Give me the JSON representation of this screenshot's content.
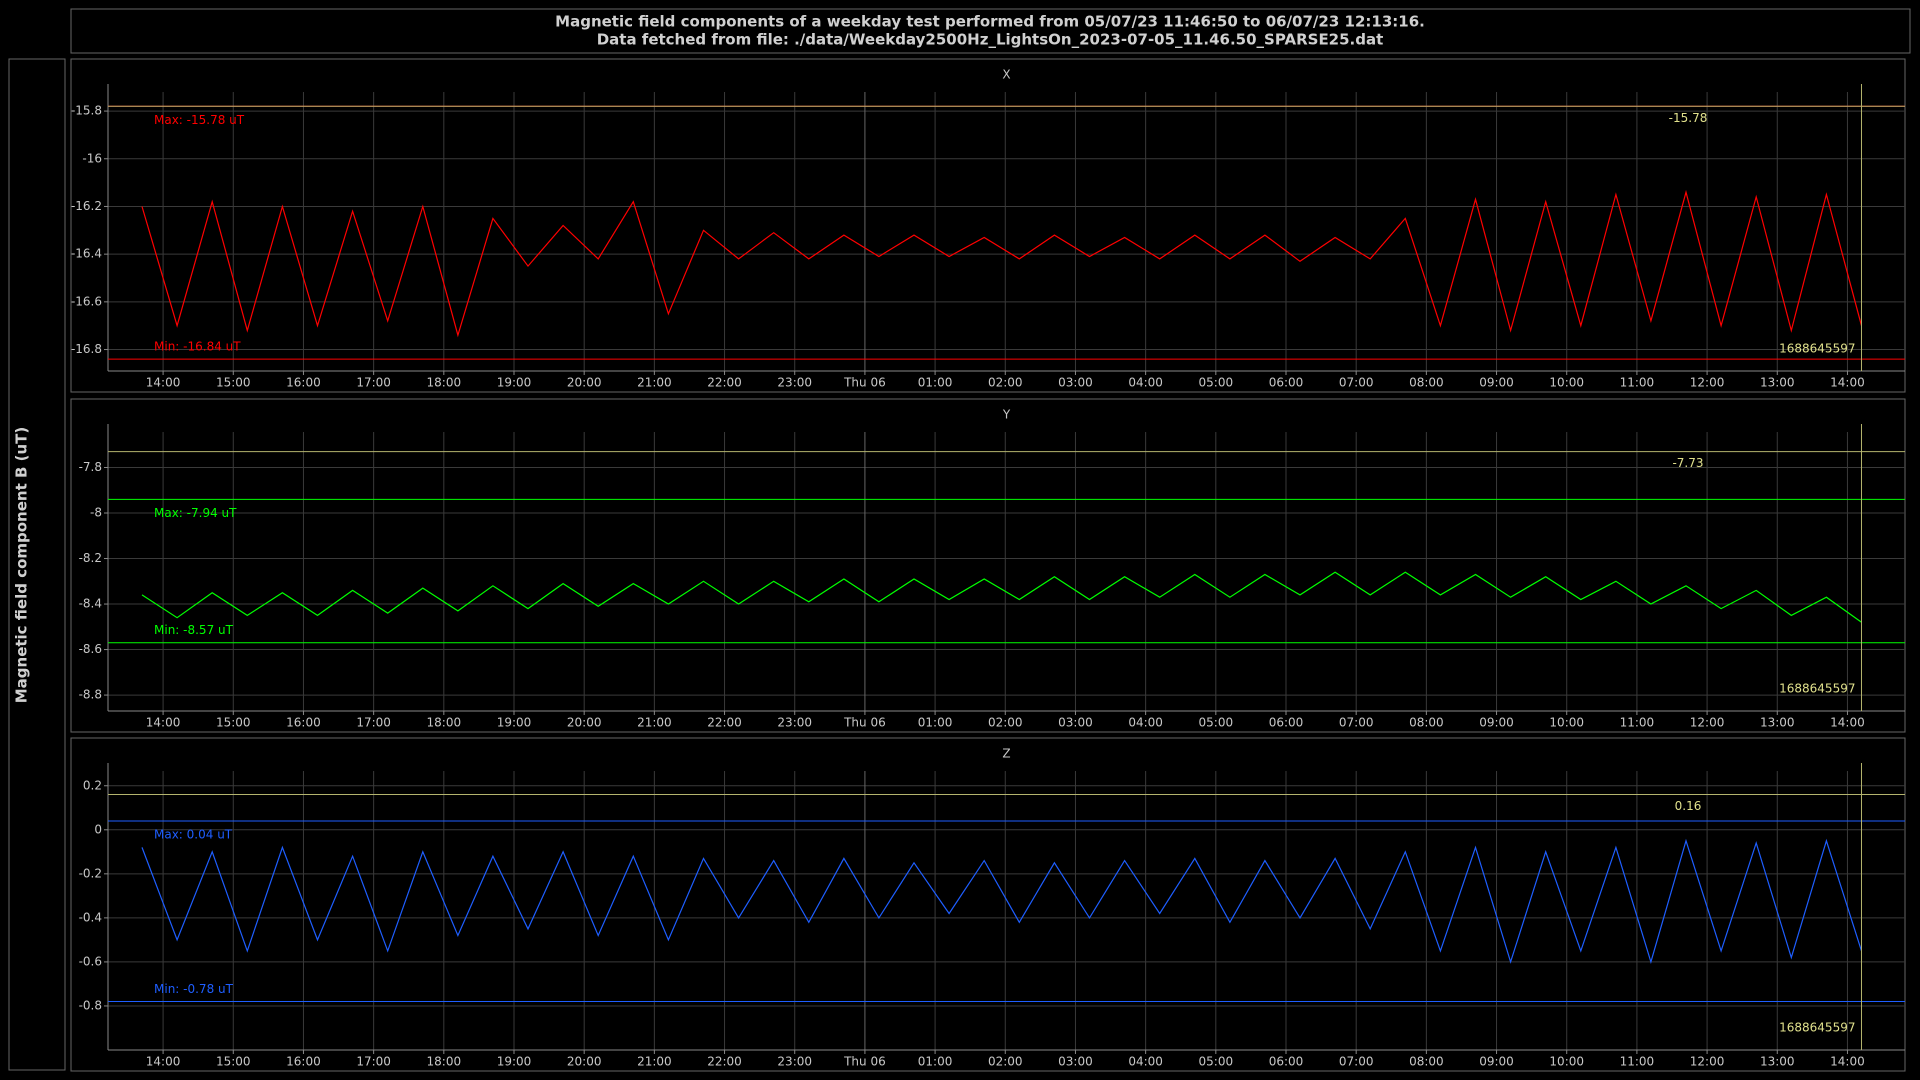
{
  "header": {
    "title_lines": [
      "Magnetic field components of a weekday test performed from 05/07/23 11:46:50 to 06/07/23 12:13:16.",
      "Data fetched from file: ./data/Weekday2500Hz_LightsOn_2023-07-05_11.46.50_SPARSE25.dat"
    ]
  },
  "y_axis_label": "Magnetic field component B (uT)",
  "chart_data": [
    {
      "type": "line",
      "title": "X",
      "color": "#ff0000",
      "grid": true,
      "x": [
        13.7,
        14.2,
        14.7,
        15.2,
        15.7,
        16.2,
        16.7,
        17.2,
        17.7,
        18.2,
        18.7,
        19.2,
        19.7,
        20.2,
        20.7,
        21.2,
        21.7,
        22.2,
        22.7,
        23.2,
        23.7,
        24.2,
        24.7,
        25.2,
        25.7,
        26.2,
        26.7,
        27.2,
        27.7,
        28.2,
        28.7,
        29.2,
        29.7,
        30.2,
        30.7,
        31.2,
        31.7,
        32.2,
        32.7,
        33.2,
        33.7,
        34.2,
        34.7,
        35.2,
        35.7,
        36.2,
        36.7,
        37.2,
        37.7,
        38.2
      ],
      "values": [
        -16.2,
        -16.7,
        -16.18,
        -16.72,
        -16.2,
        -16.7,
        -16.22,
        -16.68,
        -16.2,
        -16.74,
        -16.25,
        -16.45,
        -16.28,
        -16.42,
        -16.18,
        -16.65,
        -16.3,
        -16.42,
        -16.31,
        -16.42,
        -16.32,
        -16.41,
        -16.32,
        -16.41,
        -16.33,
        -16.42,
        -16.32,
        -16.41,
        -16.33,
        -16.42,
        -16.32,
        -16.42,
        -16.32,
        -16.43,
        -16.33,
        -16.42,
        -16.25,
        -16.7,
        -16.17,
        -16.72,
        -16.18,
        -16.7,
        -16.15,
        -16.68,
        -16.14,
        -16.7,
        -16.16,
        -16.72,
        -16.15,
        -16.7
      ],
      "xlim": [
        13.215,
        38.82
      ],
      "ylim": [
        -16.89,
        -15.72
      ],
      "yticks": [
        -15.8,
        -16,
        -16.2,
        -16.4,
        -16.6,
        -16.8
      ],
      "xticks": [
        {
          "value": 14,
          "label": "14:00"
        },
        {
          "value": 15,
          "label": "15:00"
        },
        {
          "value": 16,
          "label": "16:00"
        },
        {
          "value": 17,
          "label": "17:00"
        },
        {
          "value": 18,
          "label": "18:00"
        },
        {
          "value": 19,
          "label": "19:00"
        },
        {
          "value": 20,
          "label": "20:00"
        },
        {
          "value": 21,
          "label": "21:00"
        },
        {
          "value": 22,
          "label": "22:00"
        },
        {
          "value": 23,
          "label": "23:00"
        },
        {
          "value": 24,
          "label": "Thu 06"
        },
        {
          "value": 25,
          "label": "01:00"
        },
        {
          "value": 26,
          "label": "02:00"
        },
        {
          "value": 27,
          "label": "03:00"
        },
        {
          "value": 28,
          "label": "04:00"
        },
        {
          "value": 29,
          "label": "05:00"
        },
        {
          "value": 30,
          "label": "06:00"
        },
        {
          "value": 31,
          "label": "07:00"
        },
        {
          "value": 32,
          "label": "08:00"
        },
        {
          "value": 33,
          "label": "09:00"
        },
        {
          "value": 34,
          "label": "10:00"
        },
        {
          "value": 35,
          "label": "11:00"
        },
        {
          "value": 36,
          "label": "12:00"
        },
        {
          "value": 37,
          "label": "13:00"
        },
        {
          "value": 38,
          "label": "14:00"
        }
      ],
      "max": {
        "value": -15.78,
        "label": "Max: -15.78 uT"
      },
      "min": {
        "value": -16.84,
        "label": "Min: -16.84 uT"
      },
      "cursor_y": -15.78,
      "cursor_x": {
        "value": 38.2,
        "label": "1688645597"
      }
    },
    {
      "type": "line",
      "title": "Y",
      "color": "#00ff00",
      "grid": true,
      "x": [
        13.7,
        14.2,
        14.7,
        15.2,
        15.7,
        16.2,
        16.7,
        17.2,
        17.7,
        18.2,
        18.7,
        19.2,
        19.7,
        20.2,
        20.7,
        21.2,
        21.7,
        22.2,
        22.7,
        23.2,
        23.7,
        24.2,
        24.7,
        25.2,
        25.7,
        26.2,
        26.7,
        27.2,
        27.7,
        28.2,
        28.7,
        29.2,
        29.7,
        30.2,
        30.7,
        31.2,
        31.7,
        32.2,
        32.7,
        33.2,
        33.7,
        34.2,
        34.7,
        35.2,
        35.7,
        36.2,
        36.7,
        37.2,
        37.7,
        38.2
      ],
      "values": [
        -8.36,
        -8.46,
        -8.35,
        -8.45,
        -8.35,
        -8.45,
        -8.34,
        -8.44,
        -8.33,
        -8.43,
        -8.32,
        -8.42,
        -8.31,
        -8.41,
        -8.31,
        -8.4,
        -8.3,
        -8.4,
        -8.3,
        -8.39,
        -8.29,
        -8.39,
        -8.29,
        -8.38,
        -8.29,
        -8.38,
        -8.28,
        -8.38,
        -8.28,
        -8.37,
        -8.27,
        -8.37,
        -8.27,
        -8.36,
        -8.26,
        -8.36,
        -8.26,
        -8.36,
        -8.27,
        -8.37,
        -8.28,
        -8.38,
        -8.3,
        -8.4,
        -8.32,
        -8.42,
        -8.34,
        -8.45,
        -8.37,
        -8.48
      ],
      "xlim": [
        13.215,
        38.82
      ],
      "ylim": [
        -8.87,
        -7.644
      ],
      "yticks": [
        -7.8,
        -8,
        -8.2,
        -8.4,
        -8.6,
        -8.8
      ],
      "xticks": [
        {
          "value": 14,
          "label": "14:00"
        },
        {
          "value": 15,
          "label": "15:00"
        },
        {
          "value": 16,
          "label": "16:00"
        },
        {
          "value": 17,
          "label": "17:00"
        },
        {
          "value": 18,
          "label": "18:00"
        },
        {
          "value": 19,
          "label": "19:00"
        },
        {
          "value": 20,
          "label": "20:00"
        },
        {
          "value": 21,
          "label": "21:00"
        },
        {
          "value": 22,
          "label": "22:00"
        },
        {
          "value": 23,
          "label": "23:00"
        },
        {
          "value": 24,
          "label": "Thu 06"
        },
        {
          "value": 25,
          "label": "01:00"
        },
        {
          "value": 26,
          "label": "02:00"
        },
        {
          "value": 27,
          "label": "03:00"
        },
        {
          "value": 28,
          "label": "04:00"
        },
        {
          "value": 29,
          "label": "05:00"
        },
        {
          "value": 30,
          "label": "06:00"
        },
        {
          "value": 31,
          "label": "07:00"
        },
        {
          "value": 32,
          "label": "08:00"
        },
        {
          "value": 33,
          "label": "09:00"
        },
        {
          "value": 34,
          "label": "10:00"
        },
        {
          "value": 35,
          "label": "11:00"
        },
        {
          "value": 36,
          "label": "12:00"
        },
        {
          "value": 37,
          "label": "13:00"
        },
        {
          "value": 38,
          "label": "14:00"
        }
      ],
      "max": {
        "value": -7.94,
        "label": "Max: -7.94 uT"
      },
      "min": {
        "value": -8.57,
        "label": "Min: -8.57 uT"
      },
      "cursor_y": -7.73,
      "cursor_x": {
        "value": 38.2,
        "label": "1688645597"
      }
    },
    {
      "type": "line",
      "title": "Z",
      "color": "#1e5eff",
      "grid": true,
      "x": [
        13.7,
        14.2,
        14.7,
        15.2,
        15.7,
        16.2,
        16.7,
        17.2,
        17.7,
        18.2,
        18.7,
        19.2,
        19.7,
        20.2,
        20.7,
        21.2,
        21.7,
        22.2,
        22.7,
        23.2,
        23.7,
        24.2,
        24.7,
        25.2,
        25.7,
        26.2,
        26.7,
        27.2,
        27.7,
        28.2,
        28.7,
        29.2,
        29.7,
        30.2,
        30.7,
        31.2,
        31.7,
        32.2,
        32.7,
        33.2,
        33.7,
        34.2,
        34.7,
        35.2,
        35.7,
        36.2,
        36.7,
        37.2,
        37.7,
        38.2
      ],
      "values": [
        -0.08,
        -0.5,
        -0.1,
        -0.55,
        -0.08,
        -0.5,
        -0.12,
        -0.55,
        -0.1,
        -0.48,
        -0.12,
        -0.45,
        -0.1,
        -0.48,
        -0.12,
        -0.5,
        -0.13,
        -0.4,
        -0.14,
        -0.42,
        -0.13,
        -0.4,
        -0.15,
        -0.38,
        -0.14,
        -0.42,
        -0.15,
        -0.4,
        -0.14,
        -0.38,
        -0.13,
        -0.42,
        -0.14,
        -0.4,
        -0.13,
        -0.45,
        -0.1,
        -0.55,
        -0.08,
        -0.6,
        -0.1,
        -0.55,
        -0.08,
        -0.6,
        -0.05,
        -0.55,
        -0.06,
        -0.58,
        -0.05,
        -0.55
      ],
      "xlim": [
        13.215,
        38.82
      ],
      "ylim": [
        -1.0,
        0.267
      ],
      "yticks": [
        0.2,
        0,
        -0.2,
        -0.4,
        -0.6,
        -0.8
      ],
      "xticks": [
        {
          "value": 14,
          "label": "14:00"
        },
        {
          "value": 15,
          "label": "15:00"
        },
        {
          "value": 16,
          "label": "16:00"
        },
        {
          "value": 17,
          "label": "17:00"
        },
        {
          "value": 18,
          "label": "18:00"
        },
        {
          "value": 19,
          "label": "19:00"
        },
        {
          "value": 20,
          "label": "20:00"
        },
        {
          "value": 21,
          "label": "21:00"
        },
        {
          "value": 22,
          "label": "22:00"
        },
        {
          "value": 23,
          "label": "23:00"
        },
        {
          "value": 24,
          "label": "Thu 06"
        },
        {
          "value": 25,
          "label": "01:00"
        },
        {
          "value": 26,
          "label": "02:00"
        },
        {
          "value": 27,
          "label": "03:00"
        },
        {
          "value": 28,
          "label": "04:00"
        },
        {
          "value": 29,
          "label": "05:00"
        },
        {
          "value": 30,
          "label": "06:00"
        },
        {
          "value": 31,
          "label": "07:00"
        },
        {
          "value": 32,
          "label": "08:00"
        },
        {
          "value": 33,
          "label": "09:00"
        },
        {
          "value": 34,
          "label": "10:00"
        },
        {
          "value": 35,
          "label": "11:00"
        },
        {
          "value": 36,
          "label": "12:00"
        },
        {
          "value": 37,
          "label": "13:00"
        },
        {
          "value": 38,
          "label": "14:00"
        }
      ],
      "max": {
        "value": 0.04,
        "label": "Max: 0.04 uT"
      },
      "min": {
        "value": -0.78,
        "label": "Min: -0.78 uT"
      },
      "cursor_y": 0.16,
      "cursor_x": {
        "value": 38.2,
        "label": "1688645597"
      }
    }
  ]
}
